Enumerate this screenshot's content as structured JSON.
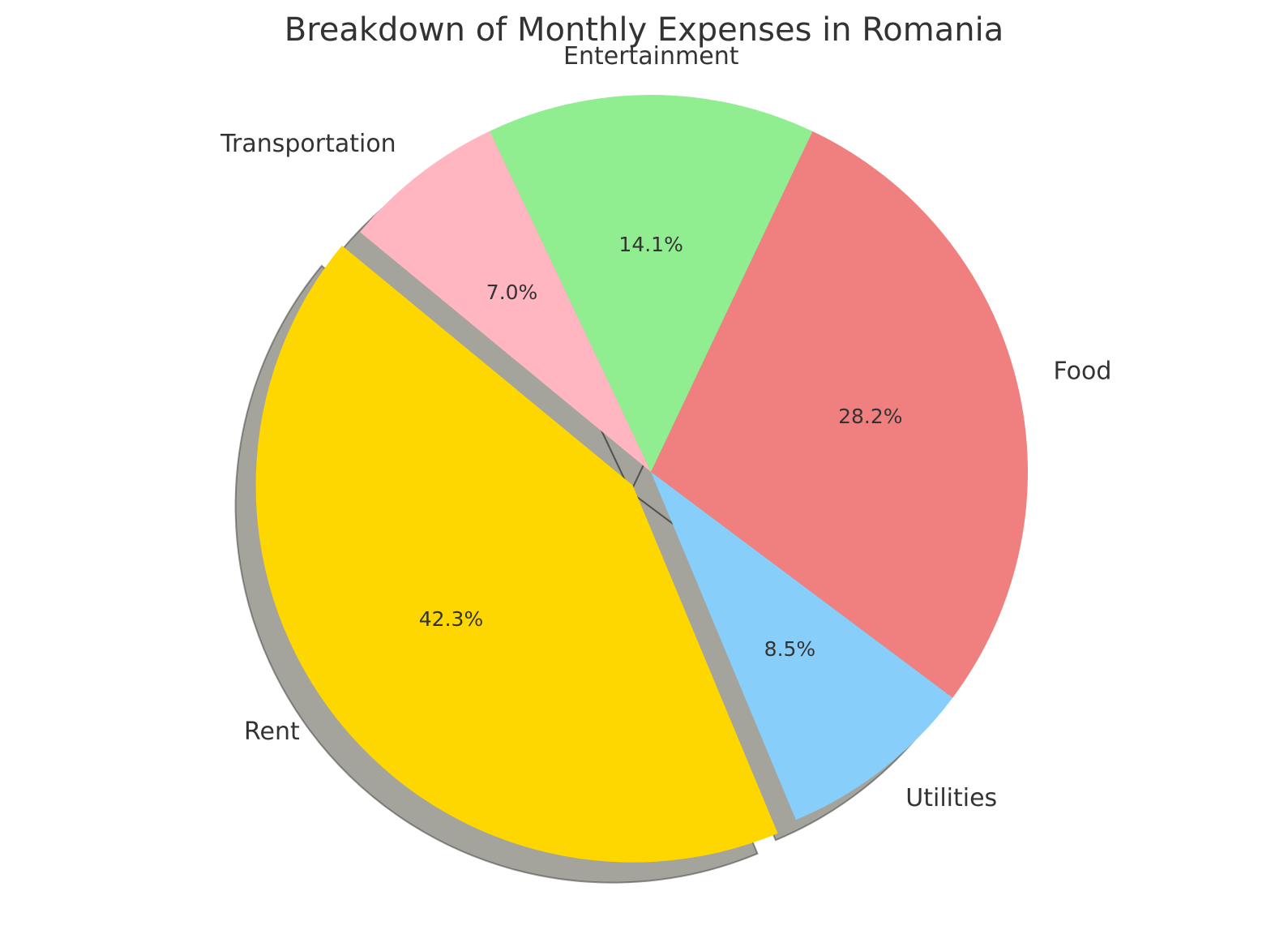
{
  "chart_data": {
    "type": "pie",
    "title": "Breakdown of Monthly Expenses in Romania",
    "categories": [
      "Rent",
      "Utilities",
      "Food",
      "Entertainment",
      "Transportation"
    ],
    "values": [
      42.3,
      8.5,
      28.2,
      14.1,
      7.0
    ],
    "percent_labels": [
      "42.3%",
      "8.5%",
      "28.2%",
      "14.1%",
      "7.0%"
    ],
    "colors": [
      "#ffd700",
      "#87cefa",
      "#f08080",
      "#90ee90",
      "#ffb6c1"
    ],
    "explode": [
      0.06,
      0,
      0,
      0,
      0
    ],
    "shadow": true,
    "legend": null
  }
}
